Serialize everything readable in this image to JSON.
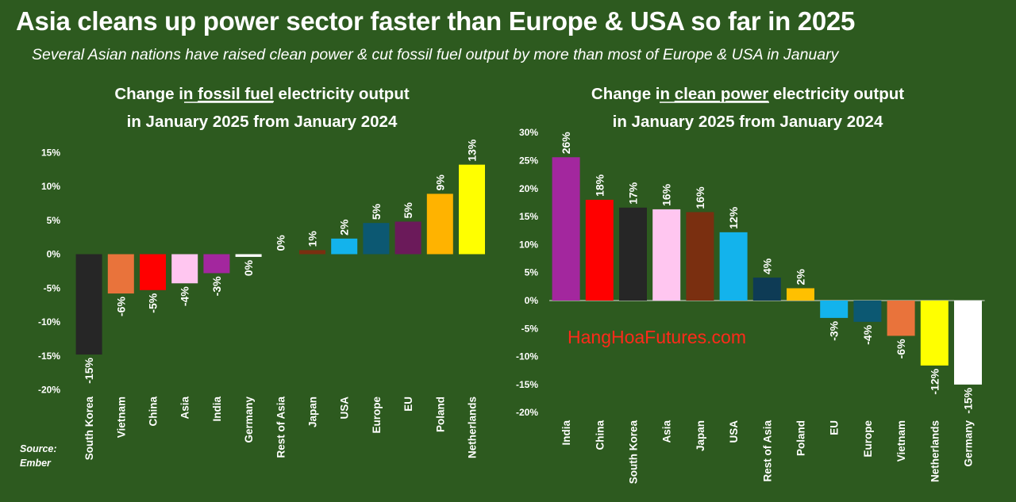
{
  "title": "Asia cleans up power sector faster than Europe & USA so far in 2025",
  "subtitle": "Several Asian nations have raised clean power & cut fossil fuel output by more than most of Europe & USA in January",
  "source": "Source:",
  "source_name": "Ember",
  "watermark": "HangHoaFutures.com",
  "chart_data": [
    {
      "type": "bar",
      "title_prefix": "Change in ",
      "title_underlined": "fossil fuel",
      "title_suffix": " electricity output",
      "title_line2": "in January 2025 from January 2024",
      "ylim": [
        -20,
        15
      ],
      "yticks": [
        15,
        10,
        5,
        0,
        -5,
        -10,
        -15,
        -20
      ],
      "ytick_labels": [
        "15%",
        "10%",
        "5%",
        "0%",
        "-5%",
        "-10%",
        "-15%",
        "-20%"
      ],
      "categories": [
        "South Korea",
        "Vietnam",
        "China",
        "Asia",
        "India",
        "Germany",
        "Rest of Asia",
        "Japan",
        "USA",
        "Europe",
        "EU",
        "Poland",
        "Netherlands"
      ],
      "values": [
        -14.8,
        -5.8,
        -5.3,
        -4.3,
        -2.8,
        -0.4,
        0.0,
        0.6,
        2.3,
        4.6,
        4.8,
        8.9,
        13.2
      ],
      "data_labels": [
        "-15%",
        "-6%",
        "-5%",
        "-4%",
        "-3%",
        "0%",
        "0%",
        "1%",
        "2%",
        "5%",
        "5%",
        "9%",
        "13%"
      ],
      "colors": [
        "#262626",
        "#e9733b",
        "#ff0000",
        "#ffc6f0",
        "#a3279e",
        "#ffffff",
        "#2d5a1f",
        "#7a2f10",
        "#13b3ec",
        "#0c5872",
        "#6b1a5a",
        "#ffb300",
        "#ffff00"
      ],
      "grid": false
    },
    {
      "type": "bar",
      "title_prefix": "Change in ",
      "title_underlined": "clean power",
      "title_suffix": " electricity output",
      "title_line2": "in January 2025 from January 2024",
      "ylim": [
        -20,
        30
      ],
      "yticks": [
        30,
        25,
        20,
        15,
        10,
        5,
        0,
        -5,
        -10,
        -15,
        -20
      ],
      "ytick_labels": [
        "30%",
        "25%",
        "20%",
        "15%",
        "10%",
        "5%",
        "0%",
        "-5%",
        "-10%",
        "-15%",
        "-20%"
      ],
      "categories": [
        "India",
        "China",
        "South Korea",
        "Asia",
        "Japan",
        "USA",
        "Rest of Asia",
        "Poland",
        "EU",
        "Europe",
        "Vietnam",
        "Netherlands",
        "Germany"
      ],
      "values": [
        25.6,
        18.0,
        16.6,
        16.3,
        15.8,
        12.2,
        4.1,
        2.2,
        -3.1,
        -3.8,
        -6.3,
        -11.6,
        -15.0
      ],
      "data_labels": [
        "26%",
        "18%",
        "17%",
        "16%",
        "16%",
        "12%",
        "4%",
        "2%",
        "-3%",
        "-4%",
        "-6%",
        "-12%",
        "-15%"
      ],
      "colors": [
        "#a3279e",
        "#ff0000",
        "#262626",
        "#ffc6f0",
        "#7a2f10",
        "#13b3ec",
        "#0e3b55",
        "#ffc000",
        "#13b3ec",
        "#0c5872",
        "#e9733b",
        "#ffff00",
        "#ffffff"
      ],
      "grid": false
    }
  ]
}
